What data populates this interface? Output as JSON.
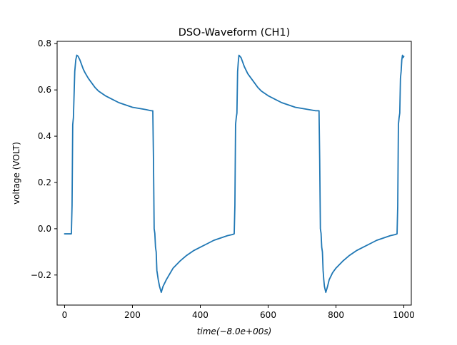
{
  "chart_data": {
    "type": "line",
    "title": "DSO-Waveform (CH1)",
    "xlabel": "time(−8.0e+00s)",
    "ylabel": "voltage (VOLT)",
    "xlim": [
      -22,
      1022
    ],
    "ylim": [
      -0.33,
      0.81
    ],
    "xticks": [
      0,
      200,
      400,
      600,
      800,
      1000
    ],
    "xtick_labels": [
      "0",
      "200",
      "400",
      "600",
      "800",
      "1000"
    ],
    "yticks": [
      -0.2,
      0.0,
      0.2,
      0.4,
      0.6,
      0.8
    ],
    "ytick_labels": [
      "−0.2",
      "0.0",
      "0.2",
      "0.4",
      "0.6",
      "0.8"
    ],
    "grid": false,
    "series": [
      {
        "color": "#1f77b4",
        "x": [
          0,
          10,
          20,
          22,
          24,
          26,
          30,
          33,
          36,
          40,
          45,
          50,
          55,
          60,
          70,
          80,
          90,
          100,
          120,
          140,
          160,
          180,
          200,
          220,
          240,
          255,
          260,
          262,
          264,
          266,
          268,
          270,
          272,
          274,
          276,
          280,
          285,
          290,
          300,
          320,
          340,
          360,
          380,
          400,
          420,
          440,
          460,
          480,
          495,
          500,
          502,
          504,
          506,
          508,
          510,
          512,
          514,
          517,
          520,
          525,
          530,
          535,
          540,
          550,
          560,
          570,
          580,
          600,
          620,
          640,
          660,
          680,
          700,
          720,
          740,
          750,
          752,
          754,
          756,
          758,
          760,
          762,
          764,
          766,
          770,
          775,
          780,
          790,
          800,
          820,
          840,
          860,
          880,
          900,
          920,
          940,
          960,
          975,
          980,
          982,
          984,
          986,
          988,
          990,
          992,
          994,
          996,
          998,
          1000
        ],
        "y": [
          -0.022,
          -0.022,
          -0.022,
          0.1,
          0.45,
          0.48,
          0.68,
          0.73,
          0.75,
          0.745,
          0.73,
          0.71,
          0.69,
          0.675,
          0.65,
          0.63,
          0.61,
          0.595,
          0.575,
          0.56,
          0.545,
          0.535,
          0.525,
          0.52,
          0.515,
          0.51,
          0.51,
          0.3,
          0.0,
          -0.02,
          -0.08,
          -0.1,
          -0.18,
          -0.2,
          -0.22,
          -0.25,
          -0.275,
          -0.25,
          -0.22,
          -0.17,
          -0.14,
          -0.115,
          -0.095,
          -0.08,
          -0.065,
          -0.05,
          -0.04,
          -0.03,
          -0.025,
          -0.022,
          0.1,
          0.45,
          0.48,
          0.5,
          0.68,
          0.72,
          0.75,
          0.745,
          0.74,
          0.72,
          0.7,
          0.685,
          0.67,
          0.65,
          0.63,
          0.61,
          0.595,
          0.575,
          0.56,
          0.545,
          0.535,
          0.525,
          0.52,
          0.515,
          0.51,
          0.51,
          0.3,
          0.0,
          -0.02,
          -0.08,
          -0.1,
          -0.18,
          -0.22,
          -0.25,
          -0.275,
          -0.25,
          -0.22,
          -0.19,
          -0.17,
          -0.14,
          -0.115,
          -0.095,
          -0.08,
          -0.065,
          -0.05,
          -0.04,
          -0.03,
          -0.025,
          -0.022,
          0.1,
          0.45,
          0.48,
          0.5,
          0.65,
          0.68,
          0.73,
          0.75,
          0.74,
          0.745
        ]
      }
    ]
  }
}
